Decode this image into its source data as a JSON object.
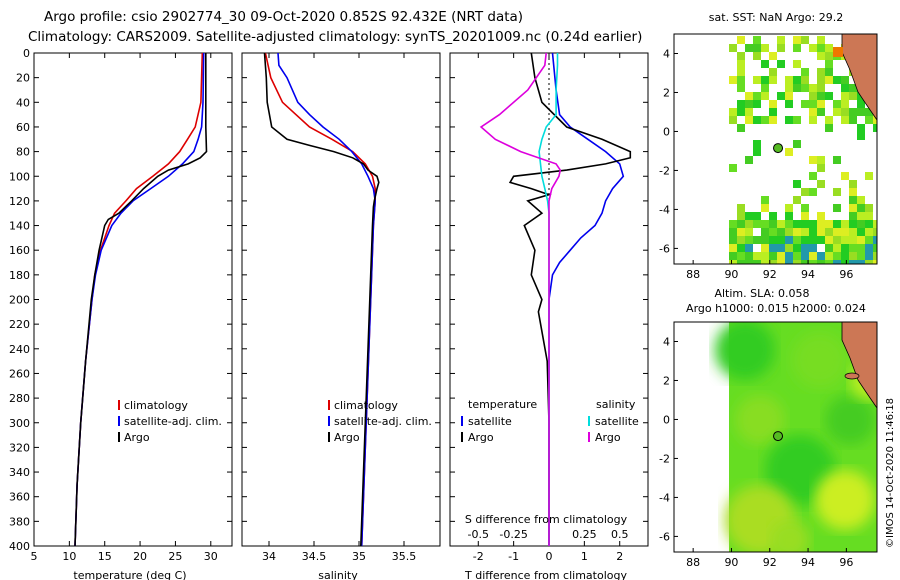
{
  "title_line1": "Argo profile: csio 2902774_30 09-Oct-2020 0.852S 92.432E (NRT data)",
  "title_line2": "Climatology: CARS2009. Satellite-adjusted climatology: synTS_20201009.nc (0.24d earlier)",
  "watermark": "©IMOS 14-Oct-2020 11:46:18",
  "colors": {
    "climatology": "#dd0000",
    "satellite": "#0000ee",
    "argo": "#000000",
    "sat_salinity": "#00dddd",
    "argo_salinity": "#dd00dd"
  },
  "chart_data": [
    {
      "type": "line",
      "id": "temperature",
      "xlabel": "temperature (deg C)",
      "ylabel": "",
      "xlim": [
        5,
        33
      ],
      "ylim": [
        400,
        0
      ],
      "xticks": [
        5,
        10,
        15,
        20,
        25,
        30
      ],
      "yticks": [
        0,
        20,
        40,
        60,
        80,
        100,
        120,
        140,
        160,
        180,
        200,
        220,
        240,
        260,
        280,
        300,
        320,
        340,
        360,
        380,
        400
      ],
      "legend": [
        "climatology",
        "satellite-adj. clim.",
        "Argo"
      ],
      "series": [
        {
          "name": "climatology",
          "color": "#dd0000",
          "depth": [
            0,
            40,
            60,
            70,
            80,
            90,
            100,
            110,
            120,
            130,
            140,
            160,
            180,
            200,
            250,
            300,
            350,
            400
          ],
          "values": [
            28.8,
            28.6,
            27.8,
            26.7,
            25.6,
            24.0,
            21.8,
            19.5,
            18.0,
            16.4,
            15.6,
            14.4,
            13.6,
            13.2,
            12.3,
            11.6,
            11.1,
            10.8
          ]
        },
        {
          "name": "satellite-adj. clim.",
          "color": "#0000ee",
          "depth": [
            0,
            40,
            60,
            70,
            80,
            90,
            100,
            110,
            120,
            130,
            140,
            160,
            180,
            200,
            250,
            300,
            350,
            400
          ],
          "values": [
            29.0,
            28.9,
            28.7,
            28.2,
            27.6,
            26.0,
            24.0,
            21.5,
            19.0,
            17.3,
            16.0,
            14.5,
            13.7,
            13.2,
            12.3,
            11.6,
            11.1,
            10.8
          ]
        },
        {
          "name": "Argo",
          "color": "#000000",
          "depth": [
            0,
            20,
            40,
            60,
            80,
            85,
            90,
            95,
            100,
            110,
            120,
            130,
            135,
            140,
            160,
            180,
            200,
            250,
            300,
            350,
            400
          ],
          "values": [
            29.3,
            29.3,
            29.3,
            29.3,
            29.4,
            28.5,
            26.8,
            24.0,
            22.5,
            20.5,
            18.8,
            17.0,
            15.5,
            15.0,
            14.2,
            13.6,
            13.1,
            12.3,
            11.6,
            11.1,
            10.8
          ]
        }
      ]
    },
    {
      "type": "line",
      "id": "salinity",
      "xlabel": "salinity",
      "ylabel": "",
      "xlim": [
        33.7,
        35.9
      ],
      "ylim": [
        400,
        0
      ],
      "xticks": [
        34,
        34.5,
        35,
        35.5
      ],
      "legend": [
        "climatology",
        "satellite-adj. clim.",
        "Argo"
      ],
      "series": [
        {
          "name": "climatology",
          "color": "#dd0000",
          "depth": [
            0,
            20,
            40,
            60,
            70,
            80,
            90,
            100,
            110,
            120,
            140,
            200,
            300,
            400
          ],
          "values": [
            33.96,
            34.02,
            34.15,
            34.45,
            34.7,
            34.93,
            35.07,
            35.15,
            35.18,
            35.18,
            35.16,
            35.13,
            35.08,
            35.03
          ]
        },
        {
          "name": "satellite-adj. clim.",
          "color": "#0000ee",
          "depth": [
            0,
            10,
            20,
            40,
            50,
            60,
            70,
            80,
            90,
            100,
            110,
            120,
            140,
            200,
            300,
            400
          ],
          "values": [
            34.1,
            34.11,
            34.2,
            34.32,
            34.45,
            34.6,
            34.78,
            34.92,
            35.03,
            35.1,
            35.16,
            35.18,
            35.16,
            35.13,
            35.08,
            35.03
          ]
        },
        {
          "name": "Argo",
          "color": "#000000",
          "depth": [
            0,
            20,
            40,
            60,
            70,
            75,
            80,
            85,
            90,
            95,
            100,
            105,
            110,
            120,
            125,
            140,
            200,
            300,
            400
          ],
          "values": [
            33.95,
            33.97,
            33.98,
            34.03,
            34.2,
            34.45,
            34.72,
            34.93,
            35.05,
            35.1,
            35.2,
            35.22,
            35.2,
            35.17,
            35.16,
            35.15,
            35.12,
            35.07,
            35.02
          ]
        }
      ]
    },
    {
      "type": "line",
      "id": "difference",
      "xlabel": "T difference from climatology",
      "xlabel_top": "S difference from climatology",
      "xlim": [
        -2.8,
        2.8
      ],
      "ylim": [
        400,
        0
      ],
      "xticks": [
        -2,
        -1,
        0,
        1,
        2
      ],
      "xticks_s": [
        -0.5,
        -0.25,
        0,
        0.25,
        0.5
      ],
      "xlim_s": [
        -0.7,
        0.7
      ],
      "legend_headers": [
        "temperature",
        "salinity"
      ],
      "legend": [
        "satellite",
        "Argo",
        "satellite",
        "Argo"
      ],
      "series": [
        {
          "name": "T satellite",
          "color": "#0000ee",
          "depth": [
            0,
            30,
            50,
            60,
            70,
            80,
            90,
            100,
            110,
            120,
            130,
            140,
            150,
            160,
            170,
            180,
            200,
            250,
            300,
            400
          ],
          "values": [
            0.1,
            0.2,
            0.3,
            0.6,
            1.1,
            1.6,
            2.0,
            2.1,
            1.8,
            1.6,
            1.5,
            1.3,
            0.9,
            0.6,
            0.3,
            0.1,
            0,
            0,
            0,
            0
          ]
        },
        {
          "name": "T Argo",
          "color": "#000000",
          "depth": [
            0,
            20,
            40,
            60,
            70,
            80,
            85,
            90,
            95,
            100,
            105,
            110,
            115,
            120,
            130,
            140,
            160,
            180,
            200,
            210,
            250,
            300,
            350,
            400
          ],
          "values": [
            -0.5,
            -0.4,
            -0.2,
            0.5,
            1.5,
            2.3,
            2.3,
            1.6,
            0.5,
            -1.0,
            -1.1,
            -0.5,
            0,
            -0.6,
            -0.2,
            -0.7,
            -0.4,
            -0.5,
            -0.2,
            -0.3,
            -0.05,
            0,
            0,
            0
          ]
        },
        {
          "name": "S satellite",
          "color": "#00dddd",
          "depth": [
            0,
            10,
            30,
            50,
            60,
            70,
            80,
            90,
            100,
            110,
            120,
            130,
            150,
            200,
            300,
            400
          ],
          "values": [
            0.06,
            0.06,
            0.05,
            0.05,
            -0.02,
            -0.05,
            -0.07,
            -0.06,
            -0.05,
            -0.03,
            -0.01,
            0,
            0,
            0,
            0,
            0
          ]
        },
        {
          "name": "S Argo",
          "color": "#dd00dd",
          "depth": [
            0,
            10,
            30,
            50,
            60,
            70,
            80,
            90,
            95,
            100,
            110,
            120,
            130,
            150,
            200,
            300,
            400
          ],
          "values": [
            -0.02,
            -0.03,
            -0.15,
            -0.35,
            -0.48,
            -0.38,
            -0.2,
            0.05,
            0.08,
            0.07,
            0.02,
            0,
            0,
            0,
            0,
            0,
            0
          ]
        }
      ]
    },
    {
      "type": "heatmap",
      "id": "sst-map",
      "title": "sat. SST: NaN Argo: 29.2",
      "xlim": [
        87,
        97.6
      ],
      "ylim": [
        -6.8,
        5.0
      ],
      "xticks": [
        88,
        90,
        92,
        94,
        96
      ],
      "yticks": [
        -6,
        -4,
        -2,
        0,
        2,
        4
      ],
      "argo_position": [
        92.432,
        -0.852
      ]
    },
    {
      "type": "heatmap",
      "id": "sla-map",
      "title": "Altim. SLA: 0.058",
      "subtitle": "Argo h1000: 0.015 h2000: 0.024",
      "xlim": [
        87,
        97.6
      ],
      "ylim": [
        -6.8,
        5.0
      ],
      "xticks": [
        88,
        90,
        92,
        94,
        96
      ],
      "yticks": [
        -6,
        -4,
        -2,
        0,
        2,
        4
      ],
      "argo_position": [
        92.432,
        -0.852
      ]
    }
  ]
}
